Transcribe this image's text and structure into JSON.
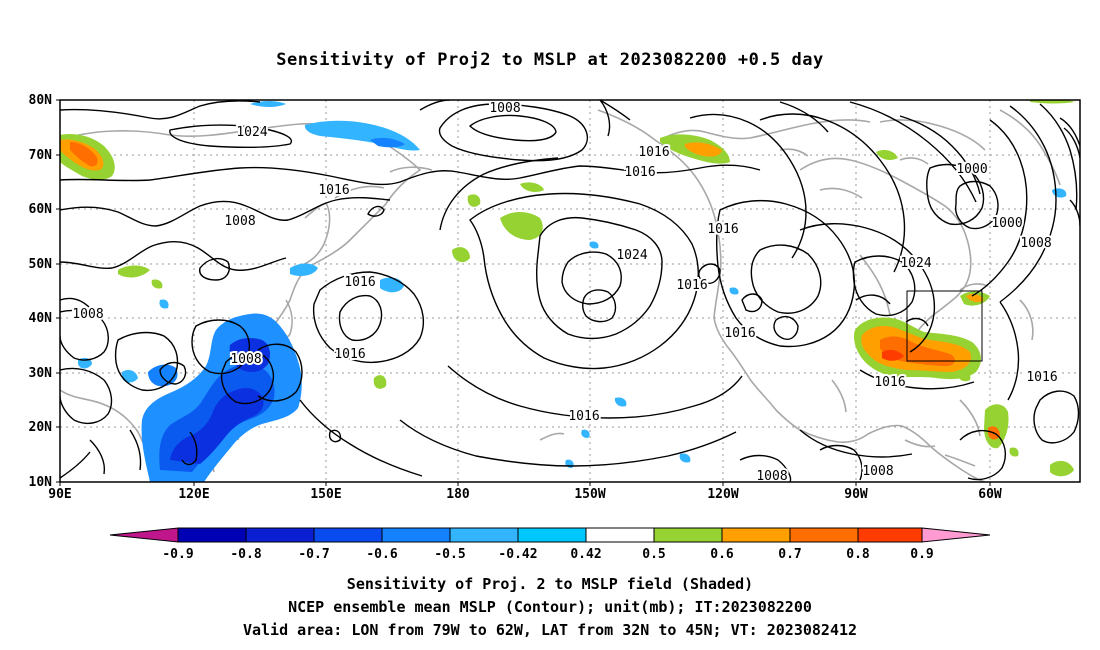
{
  "title": "Sensitivity of Proj2 to MSLP at 2023082200 +0.5 day",
  "lat_labels": [
    "80N",
    "70N",
    "60N",
    "50N",
    "40N",
    "30N",
    "20N",
    "10N"
  ],
  "lon_labels": [
    "90E",
    "120E",
    "150E",
    "180",
    "150W",
    "120W",
    "90W",
    "60W"
  ],
  "contour_labels": [
    {
      "text": "1008"
    },
    {
      "text": "1024"
    },
    {
      "text": "1016"
    },
    {
      "text": "1016"
    },
    {
      "text": "1016"
    },
    {
      "text": "1008"
    },
    {
      "text": "1016"
    },
    {
      "text": "1024"
    },
    {
      "text": "1016"
    },
    {
      "text": "1016"
    },
    {
      "text": "1024"
    },
    {
      "text": "1000"
    },
    {
      "text": "1000"
    },
    {
      "text": "1008"
    },
    {
      "text": "1008"
    },
    {
      "text": "1016"
    },
    {
      "text": "1008"
    },
    {
      "text": "1016"
    },
    {
      "text": "1016"
    },
    {
      "text": "1016"
    },
    {
      "text": "1016"
    },
    {
      "text": "1008"
    },
    {
      "text": "1008"
    }
  ],
  "colorbar": {
    "labels": [
      "-0.9",
      "-0.8",
      "-0.7",
      "-0.6",
      "-0.5",
      "-0.42",
      "0.42",
      "0.5",
      "0.6",
      "0.7",
      "0.8",
      "0.9"
    ],
    "colors": [
      "#c0168c",
      "#0000b4",
      "#0a1ed2",
      "#0a4bf0",
      "#1482ff",
      "#32b4ff",
      "#00c8ff",
      "#ffffff",
      "#96d232",
      "#ffa000",
      "#ff6e00",
      "#ff3c00",
      "#ff0000",
      "#ff9ad2"
    ]
  },
  "valid_area": {
    "lon": "79W to 62W",
    "lat": "32N to 45N"
  },
  "captions": {
    "line1": "Sensitivity of Proj. 2 to MSLP field (Shaded)",
    "line2": "NCEP ensemble mean MSLP (Contour); unit(mb); IT:2023082200",
    "line3": "Valid area: LON from 79W to 62W, LAT from 32N to 45N; VT: 2023082412"
  }
}
